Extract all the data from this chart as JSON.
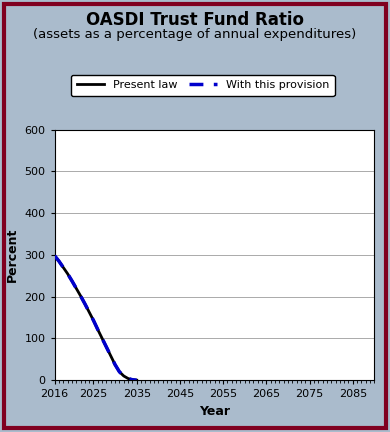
{
  "title_line1": "OASDI Trust Fund Ratio",
  "title_line2": "(assets as a percentage of annual expenditures)",
  "xlabel": "Year",
  "ylabel": "Percent",
  "xlim": [
    2016,
    2090
  ],
  "ylim": [
    0,
    600
  ],
  "xticks": [
    2016,
    2025,
    2035,
    2045,
    2055,
    2065,
    2075,
    2085
  ],
  "yticks": [
    0,
    100,
    200,
    300,
    400,
    500,
    600
  ],
  "present_law_x": [
    2016,
    2017,
    2018,
    2019,
    2020,
    2021,
    2022,
    2023,
    2024,
    2025,
    2026,
    2027,
    2028,
    2029,
    2030,
    2031,
    2032,
    2033,
    2034,
    2035
  ],
  "present_law_y": [
    298,
    285,
    270,
    255,
    238,
    220,
    202,
    183,
    163,
    143,
    121,
    100,
    79,
    58,
    37,
    20,
    10,
    4,
    1,
    0
  ],
  "provision_x": [
    2016,
    2017,
    2018,
    2019,
    2020,
    2021,
    2022,
    2023,
    2024,
    2025,
    2026,
    2027,
    2028,
    2029,
    2030,
    2031,
    2032,
    2033,
    2034,
    2035
  ],
  "provision_y": [
    298,
    285,
    270,
    255,
    238,
    220,
    202,
    183,
    163,
    143,
    121,
    100,
    79,
    58,
    37,
    20,
    10,
    4,
    1,
    0
  ],
  "present_law_color": "#000000",
  "provision_color": "#0000cc",
  "background_outer": "#aabbcc",
  "background_inner": "#ffffff",
  "border_color": "#800020",
  "legend_label_present": "Present law",
  "legend_label_provision": "With this provision",
  "title_fontsize": 12,
  "subtitle_fontsize": 9.5,
  "axis_label_fontsize": 9,
  "tick_fontsize": 8,
  "legend_fontsize": 8
}
